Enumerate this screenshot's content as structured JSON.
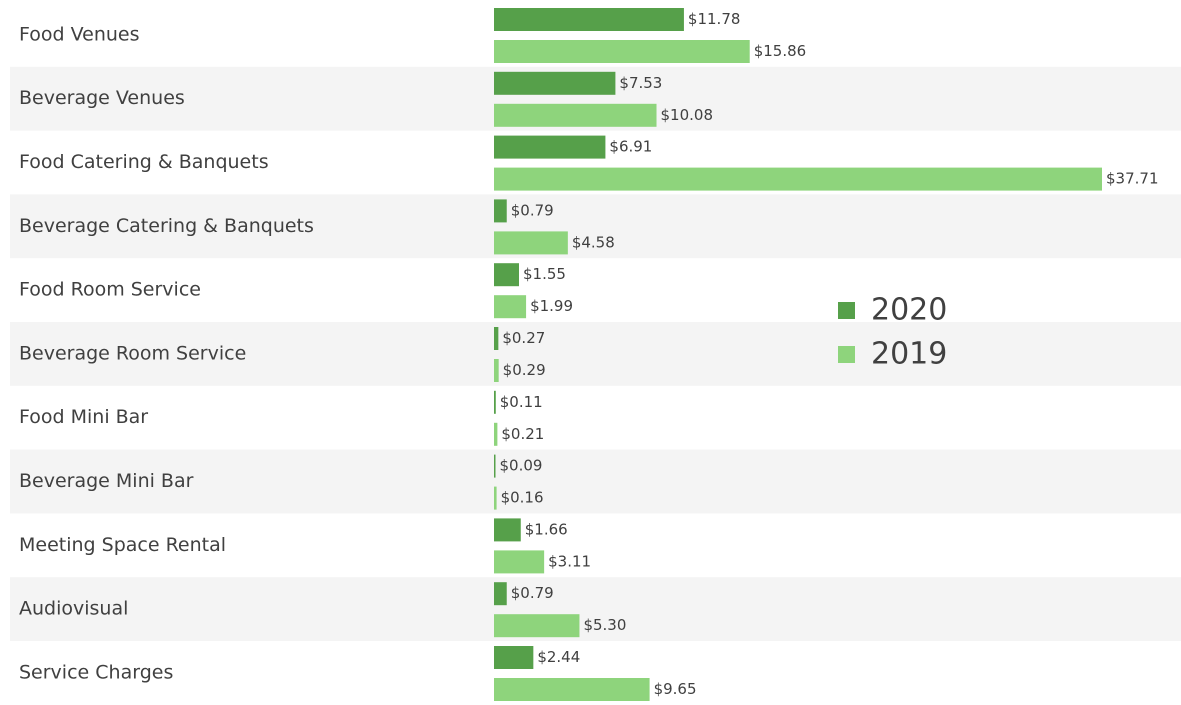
{
  "chart_data": {
    "type": "bar",
    "orientation": "horizontal",
    "categories": [
      "Food Venues",
      "Beverage Venues",
      "Food Catering & Banquets",
      "Beverage Catering & Banquets",
      "Food Room Service",
      "Beverage Room Service",
      "Food Mini Bar",
      "Beverage Mini Bar",
      "Meeting Space Rental",
      "Audiovisual",
      "Service Charges"
    ],
    "series": [
      {
        "name": "2020",
        "color": "#56a04a",
        "values": [
          11.78,
          7.53,
          6.91,
          0.79,
          1.55,
          0.27,
          0.11,
          0.09,
          1.66,
          0.79,
          2.44
        ],
        "value_labels": [
          "$11.78",
          "$7.53",
          "$6.91",
          "$0.79",
          "$1.55",
          "$0.27",
          "$0.11",
          "$0.09",
          "$1.66",
          "$0.79",
          "$2.44"
        ]
      },
      {
        "name": "2019",
        "color": "#8ed47c",
        "values": [
          15.86,
          10.08,
          37.71,
          4.58,
          1.99,
          0.29,
          0.21,
          0.16,
          3.11,
          5.3,
          9.65
        ],
        "value_labels": [
          "$15.86",
          "$10.08",
          "$37.71",
          "$4.58",
          "$1.99",
          "$0.29",
          "$0.21",
          "$0.16",
          "$3.11",
          "$5.30",
          "$9.65"
        ]
      }
    ],
    "legend": "right"
  }
}
